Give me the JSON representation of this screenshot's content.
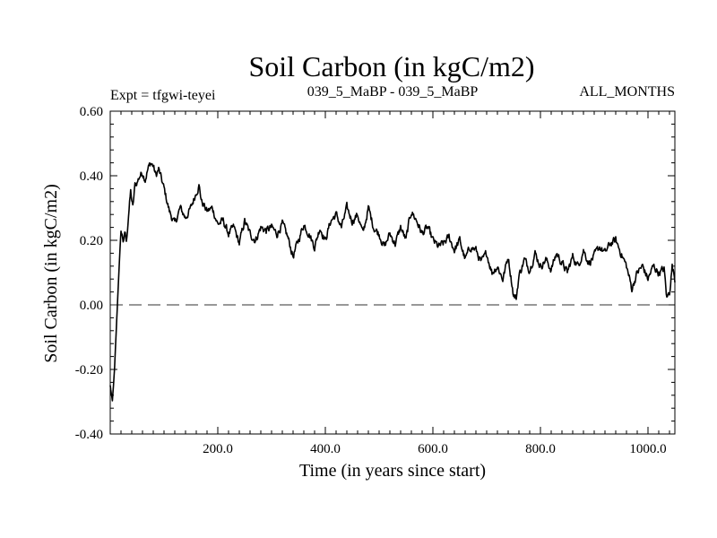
{
  "chart_data": {
    "type": "line",
    "title": "Soil Carbon (in kgC/m2)",
    "subtitle_left": "Expt = tfgwi-teyei",
    "subtitle_center": "039_5_MaBP - 039_5_MaBP",
    "subtitle_right": "ALL_MONTHS",
    "xlabel": "Time (in years since start)",
    "ylabel": "Soil Carbon (in kgC/m2)",
    "xlim": [
      0,
      1050
    ],
    "ylim": [
      -0.4,
      0.6
    ],
    "x_ticks": [
      200,
      400,
      600,
      800,
      1000
    ],
    "x_tick_labels": [
      "200.0",
      "400.0",
      "600.0",
      "800.0",
      "1000.0"
    ],
    "y_ticks": [
      -0.4,
      -0.2,
      0.0,
      0.2,
      0.4,
      0.6
    ],
    "y_tick_labels": [
      "-0.40",
      "-0.20",
      "0.00",
      "0.20",
      "0.40",
      "0.60"
    ],
    "zero_line": {
      "y": 0.0,
      "style": "dashed"
    },
    "grid": false,
    "legend": "none",
    "series": [
      {
        "name": "Soil Carbon",
        "color": "#000000",
        "x": [
          0,
          4,
          8,
          12,
          16,
          20,
          24,
          28,
          30,
          34,
          38,
          42,
          46,
          50,
          55,
          60,
          65,
          70,
          75,
          80,
          85,
          90,
          95,
          100,
          110,
          120,
          130,
          140,
          150,
          160,
          165,
          170,
          180,
          190,
          200,
          210,
          220,
          230,
          240,
          250,
          260,
          270,
          280,
          290,
          300,
          310,
          320,
          330,
          340,
          350,
          360,
          370,
          380,
          390,
          400,
          410,
          420,
          430,
          440,
          450,
          460,
          470,
          480,
          490,
          500,
          510,
          520,
          530,
          540,
          550,
          555,
          560,
          570,
          580,
          590,
          600,
          610,
          620,
          630,
          640,
          650,
          660,
          670,
          680,
          690,
          700,
          710,
          720,
          730,
          740,
          750,
          755,
          760,
          770,
          780,
          790,
          800,
          810,
          820,
          830,
          840,
          850,
          860,
          870,
          880,
          890,
          900,
          910,
          920,
          930,
          940,
          950,
          960,
          970,
          980,
          990,
          1000,
          1010,
          1020,
          1030,
          1035,
          1040,
          1045,
          1050
        ],
        "y": [
          -0.25,
          -0.3,
          -0.2,
          -0.05,
          0.1,
          0.23,
          0.2,
          0.22,
          0.19,
          0.28,
          0.35,
          0.3,
          0.37,
          0.38,
          0.4,
          0.41,
          0.39,
          0.42,
          0.44,
          0.43,
          0.4,
          0.42,
          0.39,
          0.36,
          0.29,
          0.25,
          0.3,
          0.27,
          0.3,
          0.35,
          0.37,
          0.32,
          0.29,
          0.3,
          0.25,
          0.26,
          0.22,
          0.24,
          0.19,
          0.26,
          0.22,
          0.2,
          0.24,
          0.23,
          0.24,
          0.22,
          0.25,
          0.21,
          0.15,
          0.2,
          0.25,
          0.22,
          0.18,
          0.24,
          0.2,
          0.26,
          0.28,
          0.24,
          0.3,
          0.26,
          0.28,
          0.22,
          0.3,
          0.24,
          0.22,
          0.18,
          0.22,
          0.19,
          0.24,
          0.2,
          0.25,
          0.29,
          0.26,
          0.22,
          0.24,
          0.2,
          0.18,
          0.19,
          0.21,
          0.17,
          0.2,
          0.14,
          0.18,
          0.17,
          0.13,
          0.16,
          0.1,
          0.12,
          0.08,
          0.15,
          0.03,
          0.02,
          0.09,
          0.14,
          0.11,
          0.16,
          0.12,
          0.14,
          0.11,
          0.16,
          0.13,
          0.1,
          0.15,
          0.12,
          0.17,
          0.13,
          0.15,
          0.18,
          0.16,
          0.19,
          0.2,
          0.16,
          0.12,
          0.05,
          0.1,
          0.12,
          0.08,
          0.12,
          0.1,
          0.11,
          0.02,
          0.04,
          0.12,
          0.08
        ]
      }
    ]
  }
}
